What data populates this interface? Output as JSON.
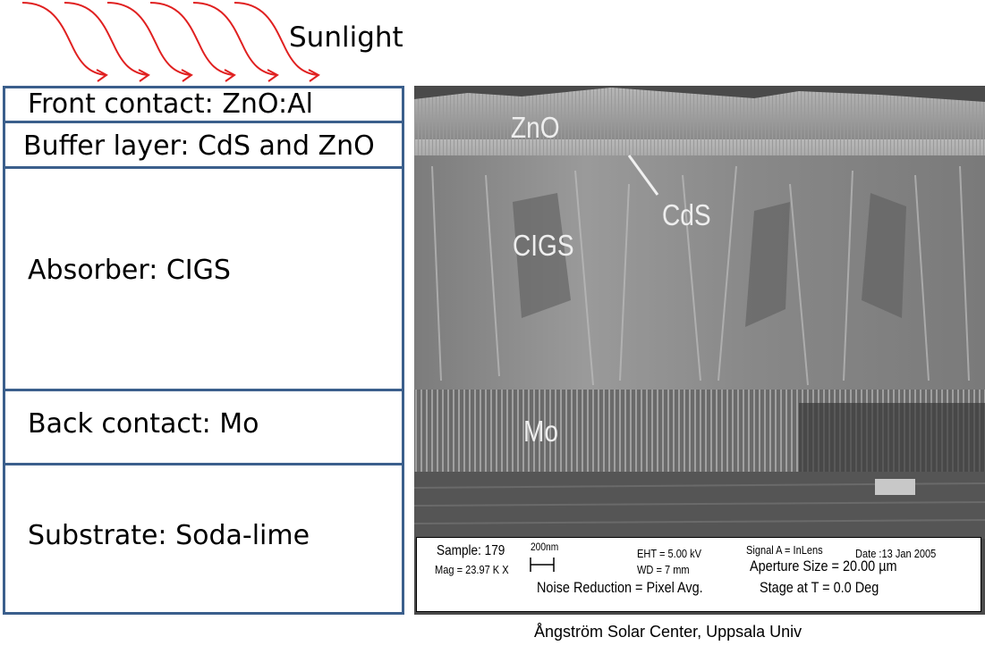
{
  "sunlight_label": "Sunlight",
  "layers": [
    {
      "label": "Front contact: ZnO:Al"
    },
    {
      "label": "Buffer layer: CdS and ZnO"
    },
    {
      "label": "Absorber: CIGS"
    },
    {
      "label": "Back contact: Mo"
    },
    {
      "label": "Substrate: Soda-lime"
    }
  ],
  "sem_image": {
    "labels": {
      "zno": "ZnO",
      "cds": "CdS",
      "cigs": "CIGS",
      "mo": "Mo"
    },
    "info": {
      "sample": "Sample: 179",
      "mag": "Mag =  23.97 K X",
      "scale": "200nm",
      "eht": "EHT =  5.00 kV",
      "wd": "WD =    7 mm",
      "noise": "Noise Reduction = Pixel Avg.",
      "signal": "Signal A = InLens",
      "date": "Date :13 Jan 2005",
      "aperture": "Aperture Size = 20.00 µm",
      "stage": "Stage at T  =    0.0 Deg"
    }
  },
  "credit": "Ångström Solar Center, Uppsala Univ",
  "colors": {
    "arrow": "#e02020",
    "layer_border": "#3b5f8c"
  }
}
